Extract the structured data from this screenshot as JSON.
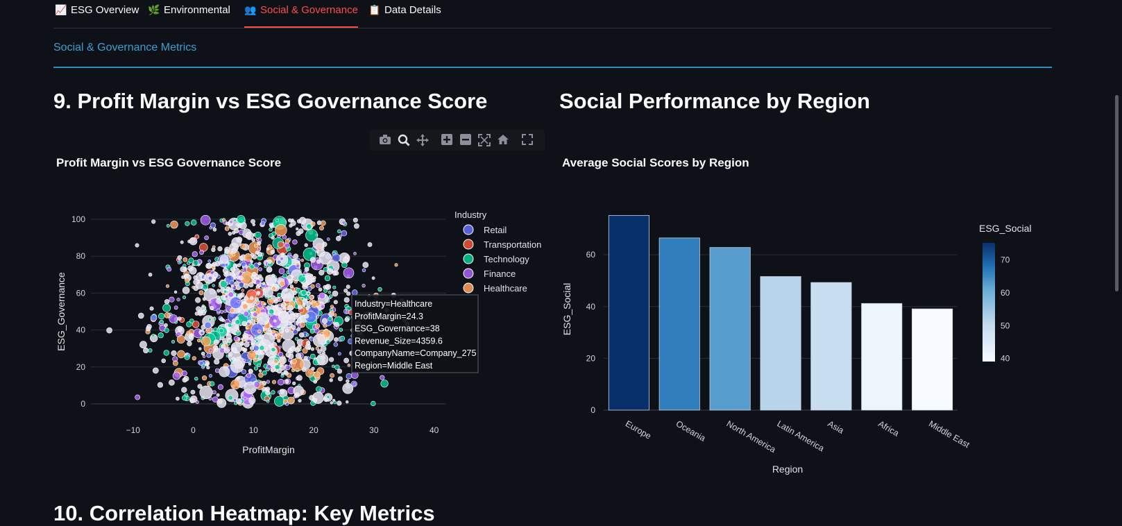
{
  "tabs": [
    {
      "icon": "📈",
      "label": "ESG Overview",
      "active": false,
      "icon_name": "chart-icon"
    },
    {
      "icon": "🌿",
      "label": "Environmental",
      "active": false,
      "icon_name": "leaf-icon"
    },
    {
      "icon": "👥",
      "label": "Social & Governance",
      "active": true,
      "icon_name": "people-icon"
    },
    {
      "icon": "📋",
      "label": "Data Details",
      "active": false,
      "icon_name": "clipboard-icon"
    }
  ],
  "subheader": "Social & Governance Metrics",
  "section9": {
    "title": "9. Profit Margin vs ESG Governance Score"
  },
  "section_social": {
    "title": "Social Performance by Region"
  },
  "section10": {
    "title": "10. Correlation Heatmap: Key Metrics"
  },
  "toolbar": [
    "camera-icon",
    "zoom-icon",
    "pan-icon",
    "zoom-in-icon",
    "zoom-out-icon",
    "autoscale-icon",
    "reset-axes-icon",
    "fullscreen-icon"
  ],
  "colors": {
    "accent": "#ff4b4b",
    "subheader": "#3d9fd1",
    "background": "#0e1117",
    "Retail": "#636efa",
    "Transportation": "#ef553b",
    "Technology": "#00cc96",
    "Finance": "#ab63fa",
    "Healthcare": "#ffa15a"
  },
  "chart_data": [
    {
      "type": "scatter",
      "title": "Profit Margin vs ESG Governance Score",
      "xlabel": "ProfitMargin",
      "ylabel": "ESG_Governance",
      "xlim": [
        -17,
        42
      ],
      "ylim": [
        0,
        100
      ],
      "xticks": [
        -10,
        0,
        10,
        20,
        30,
        40
      ],
      "yticks": [
        0,
        20,
        40,
        60,
        80,
        100
      ],
      "legend_title": "Industry",
      "legend_position": "right",
      "series": [
        {
          "name": "Retail",
          "color": "#636efa"
        },
        {
          "name": "Transportation",
          "color": "#ef553b"
        },
        {
          "name": "Technology",
          "color": "#00cc96"
        },
        {
          "name": "Finance",
          "color": "#ab63fa"
        },
        {
          "name": "Healthcare",
          "color": "#ffa15a"
        }
      ],
      "tooltip": {
        "lines": [
          "Industry=Healthcare",
          "ProfitMargin=24.3",
          "ESG_Governance=38",
          "Revenue_Size=4359.6",
          "CompanyName=Company_275",
          "Region=Middle East"
        ],
        "x": 24.3,
        "y": 38
      }
    },
    {
      "type": "bar",
      "title": "Average Social Scores by Region",
      "xlabel": "Region",
      "ylabel": "ESG_Social",
      "categories": [
        "Europe",
        "Oceania",
        "North America",
        "Latin America",
        "Asia",
        "Africa",
        "Middle East"
      ],
      "values": [
        75.2,
        66.5,
        62.8,
        51.6,
        49.3,
        41.2,
        39.1
      ],
      "ylim": [
        0,
        78
      ],
      "yticks": [
        0,
        20,
        40,
        60
      ],
      "colorbar": {
        "title": "ESG_Social",
        "ticks": [
          40,
          50,
          60,
          70
        ],
        "range": [
          39.1,
          75.2
        ]
      }
    }
  ]
}
